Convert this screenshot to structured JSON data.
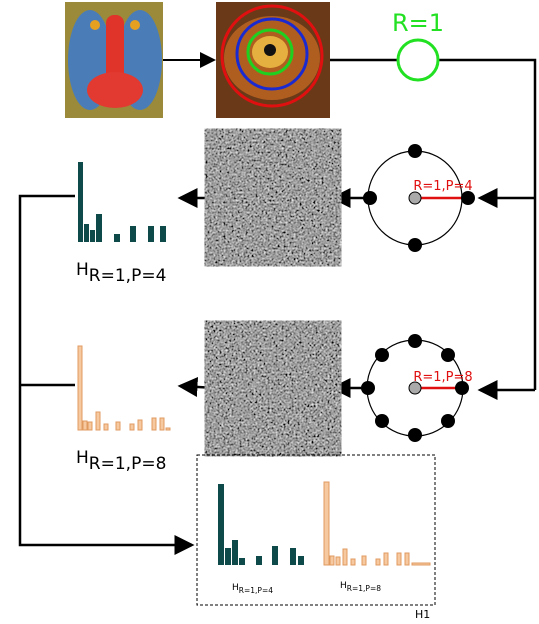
{
  "operators": {
    "radius": "R=1",
    "lbp4": "R=1,P=4",
    "lbp8": "R=1,P=8"
  },
  "histograms": [
    {
      "symbol": "H",
      "subscript": "R=1,P=4"
    },
    {
      "symbol": "H",
      "subscript": "R=1,P=8"
    }
  ],
  "combined": {
    "label": "H1"
  }
}
